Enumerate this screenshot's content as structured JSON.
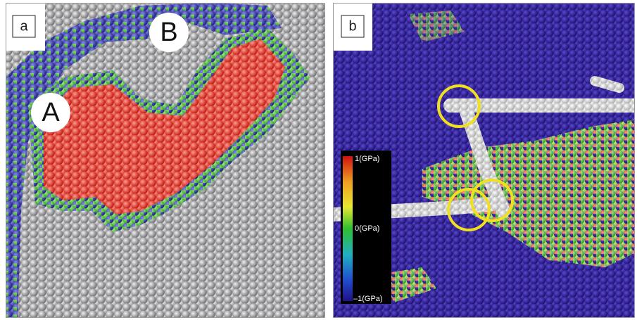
{
  "panels": [
    {
      "label": "a",
      "annotations": [
        "A",
        "B"
      ]
    },
    {
      "label": "b",
      "colorbar": {
        "labels": [
          "1(GPa)",
          "0(GPa)",
          "–1(GPa)"
        ]
      }
    }
  ]
}
